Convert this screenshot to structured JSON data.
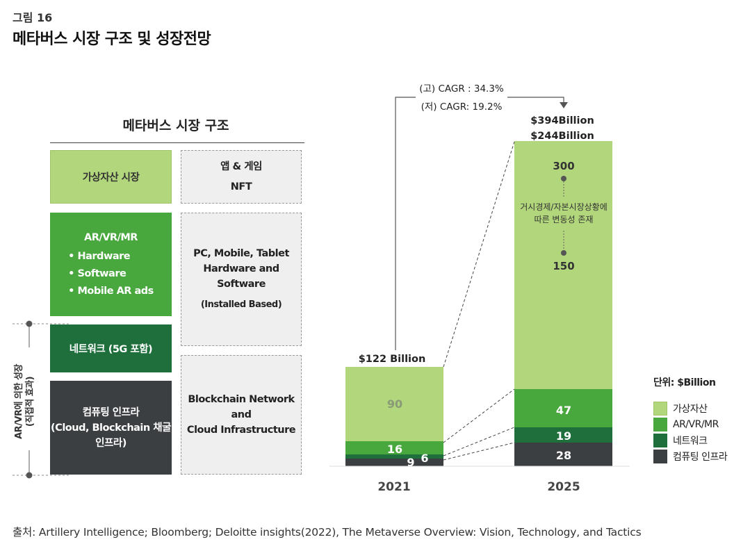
{
  "figure": {
    "label": "그림 16",
    "title": "메타버스 시장 구조 및 성장전망",
    "source": "출처: Artillery Intelligence; Bloomberg; Deloitte insights(2022), The Metaverse Overview: Vision, Technology, and Tactics"
  },
  "structure": {
    "title": "메타버스 시장 구조",
    "left_boxes": {
      "virtual_asset": "가상자산 시장",
      "arvrmr_title": "AR/VR/MR",
      "arvrmr_items": [
        "• Hardware",
        "• Software",
        "• Mobile AR ads"
      ],
      "network": "네트워크 (5G 포함)",
      "computing": [
        "컴퓨팅 인프라",
        "(Cloud, Blockchain 채굴",
        "인프라)"
      ]
    },
    "right_boxes": {
      "apps": [
        "앱 & 게임",
        "NFT"
      ],
      "devices": [
        "PC, Mobile, Tablet",
        "Hardware and Software"
      ],
      "devices_note": "(Installed Based)",
      "blockchain": [
        "Blockchain Network and",
        "Cloud Infrastructure"
      ]
    },
    "side_label": [
      "AR/VR에 의한 성장",
      "(직접적 효과)"
    ]
  },
  "colors": {
    "virtual_asset": "#b1d67b",
    "arvrmr": "#48a83d",
    "network": "#1f6f3c",
    "computing": "#3b3f42",
    "dashed_bg": "#efefef"
  },
  "chart_data": {
    "type": "bar",
    "stacked": true,
    "categories": [
      "2021",
      "2025"
    ],
    "series": [
      {
        "name": "컴퓨팅 인프라",
        "values": [
          9,
          28
        ],
        "color": "#3b3f42"
      },
      {
        "name": "네트워크",
        "values": [
          6,
          19
        ],
        "color": "#1f6f3c"
      },
      {
        "name": "AR/VR/MR",
        "values": [
          16,
          47
        ],
        "color": "#48a83d"
      },
      {
        "name": "가상자산",
        "values": [
          90,
          150
        ],
        "color": "#b1d67b"
      }
    ],
    "totals": [
      "$122 Billion",
      "$394Billion",
      "$244Billion"
    ],
    "virtual_asset_range_2025": {
      "high": 300,
      "low": 150,
      "note": [
        "거시경제/자본시장상황에",
        "따른 변동성 존재"
      ]
    },
    "cagr": [
      "(고) CAGR : 34.3%",
      "(저) CAGR: 19.2%"
    ],
    "unit": "단위: $Billion",
    "legend_title": "단위: $Billion",
    "legend": [
      "가상자산",
      "AR/VR/MR",
      "네트워크",
      "컴퓨팅 인프라"
    ]
  }
}
